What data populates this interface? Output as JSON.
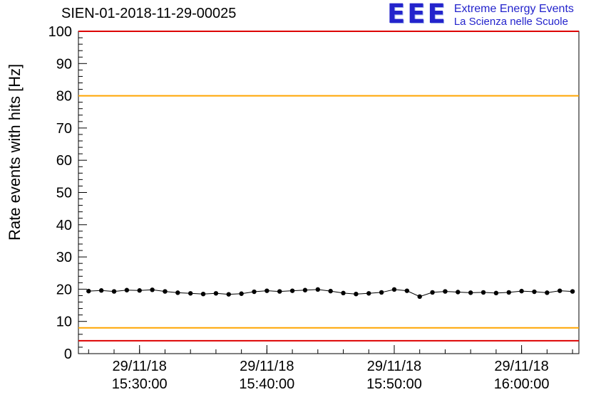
{
  "header": {
    "title": "SIEN-01-2018-11-29-00025",
    "logo": {
      "acronym": "EEE",
      "line1": "Extreme Energy Events",
      "line2": "La Scienza nelle Scuole",
      "color": "#2323cc"
    }
  },
  "chart_data": {
    "type": "line",
    "title": "SIEN-01-2018-11-29-00025",
    "ylabel": "Rate events with hits [Hz]",
    "xlabel": "",
    "ylim": [
      0,
      100
    ],
    "y_major_step": 10,
    "y_minor_step": 2,
    "x_unit": "minutes after 15:00 on 29/11/18",
    "xlim": [
      25.2,
      64.5
    ],
    "x_minor_step": 2,
    "grid": false,
    "legend": "none",
    "x_major_ticks": [
      {
        "x": 30,
        "date": "29/11/18",
        "time": "15:30:00"
      },
      {
        "x": 40,
        "date": "29/11/18",
        "time": "15:40:00"
      },
      {
        "x": 50,
        "date": "29/11/18",
        "time": "15:50:00"
      },
      {
        "x": 60,
        "date": "29/11/18",
        "time": "16:00:00"
      }
    ],
    "thresholds": [
      {
        "y": 100,
        "color": "#dd0000",
        "label": "upper-alarm"
      },
      {
        "y": 80,
        "color": "#ffa500",
        "label": "upper-warning"
      },
      {
        "y": 8,
        "color": "#ffa500",
        "label": "lower-warning"
      },
      {
        "y": 4,
        "color": "#dd0000",
        "label": "lower-alarm"
      }
    ],
    "series": [
      {
        "name": "rate-events-with-hits",
        "color": "#000000",
        "marker": "circle",
        "yerr": 0.6,
        "x": [
          26,
          27,
          28,
          29,
          30,
          31,
          32,
          33,
          34,
          35,
          36,
          37,
          38,
          39,
          40,
          41,
          42,
          43,
          44,
          45,
          46,
          47,
          48,
          49,
          50,
          51,
          52,
          53,
          54,
          55,
          56,
          57,
          58,
          59,
          60,
          61,
          62,
          63,
          64
        ],
        "y": [
          19.4,
          19.6,
          19.3,
          19.7,
          19.6,
          19.8,
          19.3,
          18.9,
          18.7,
          18.5,
          18.7,
          18.4,
          18.6,
          19.2,
          19.5,
          19.3,
          19.5,
          19.7,
          19.9,
          19.4,
          18.8,
          18.5,
          18.7,
          19.0,
          19.9,
          19.5,
          17.7,
          19.0,
          19.3,
          19.1,
          18.9,
          19.0,
          18.8,
          19.0,
          19.4,
          19.2,
          18.9,
          19.5,
          19.3
        ]
      }
    ]
  }
}
